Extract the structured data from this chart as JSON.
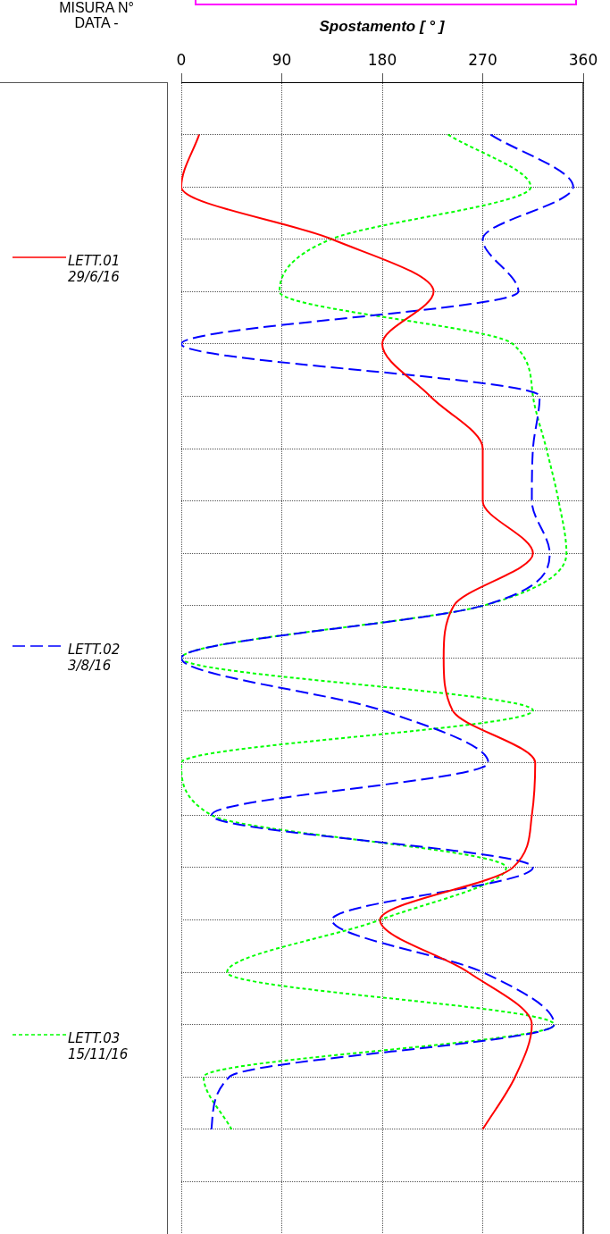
{
  "chart_data": {
    "type": "line",
    "orientation": "horizontal",
    "xlabel": "Spostamento [ ° ]",
    "annotations": [
      "MISURA N°",
      "DATA -"
    ],
    "categories": [
      null,
      null,
      null,
      null,
      null,
      null,
      null,
      null,
      null,
      null,
      null,
      null,
      null,
      null,
      null,
      null,
      null,
      null,
      null,
      null,
      null,
      null,
      null
    ],
    "xlim": [
      0,
      360
    ],
    "xticks": [
      0,
      90,
      180,
      270,
      360
    ],
    "grid": true,
    "legend": "left",
    "marker": "none",
    "series": [
      {
        "name": "LETT.01 29/6/16",
        "color": "#ff0000",
        "line_style": "solid",
        "values": [
          null,
          16,
          0,
          135,
          226,
          180,
          223,
          270,
          270,
          315,
          244,
          235,
          243,
          317,
          314,
          297,
          178,
          257,
          314,
          299,
          270,
          null,
          null
        ]
      },
      {
        "name": "LETT.02 3/8/16",
        "color": "#0000ff",
        "line_style": "dashed",
        "values": [
          null,
          277,
          351,
          270,
          302,
          0,
          321,
          315,
          314,
          330,
          270,
          0,
          180,
          275,
          27,
          315,
          135,
          270,
          334,
          43,
          27,
          null,
          null
        ]
      },
      {
        "name": "LETT.03 15/11/16",
        "color": "#00ff00",
        "line_style": "dotted",
        "values": [
          null,
          239,
          313,
          134,
          88,
          297,
          315,
          327,
          338,
          345,
          270,
          0,
          315,
          0,
          27,
          291,
          178,
          41,
          334,
          20,
          45,
          null,
          null
        ]
      }
    ]
  }
}
